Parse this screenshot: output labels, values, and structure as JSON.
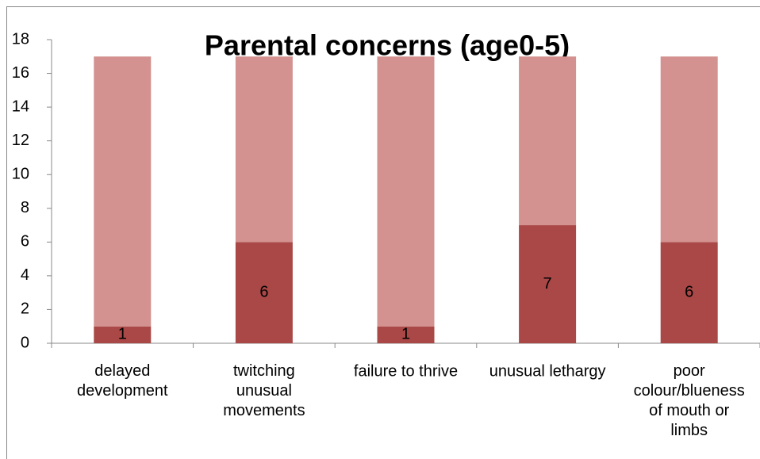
{
  "chart_data": {
    "type": "bar",
    "stacked": true,
    "title": "Parental concerns (age0-5)",
    "categories": [
      "delayed development",
      "twitching unusual movements",
      "failure to thrive",
      "unusual lethargy",
      "poor colour/blueness of mouth or limbs"
    ],
    "series": [
      {
        "color": "#a94846",
        "values": [
          1,
          6,
          1,
          7,
          6
        ],
        "show_labels": true
      },
      {
        "color": "#d39190",
        "values": [
          16,
          11,
          16,
          10,
          11
        ],
        "show_labels": false
      }
    ],
    "ylim": [
      0,
      18
    ],
    "yticks": [
      0,
      2,
      4,
      6,
      8,
      10,
      12,
      14,
      16,
      18
    ],
    "grid": false
  }
}
